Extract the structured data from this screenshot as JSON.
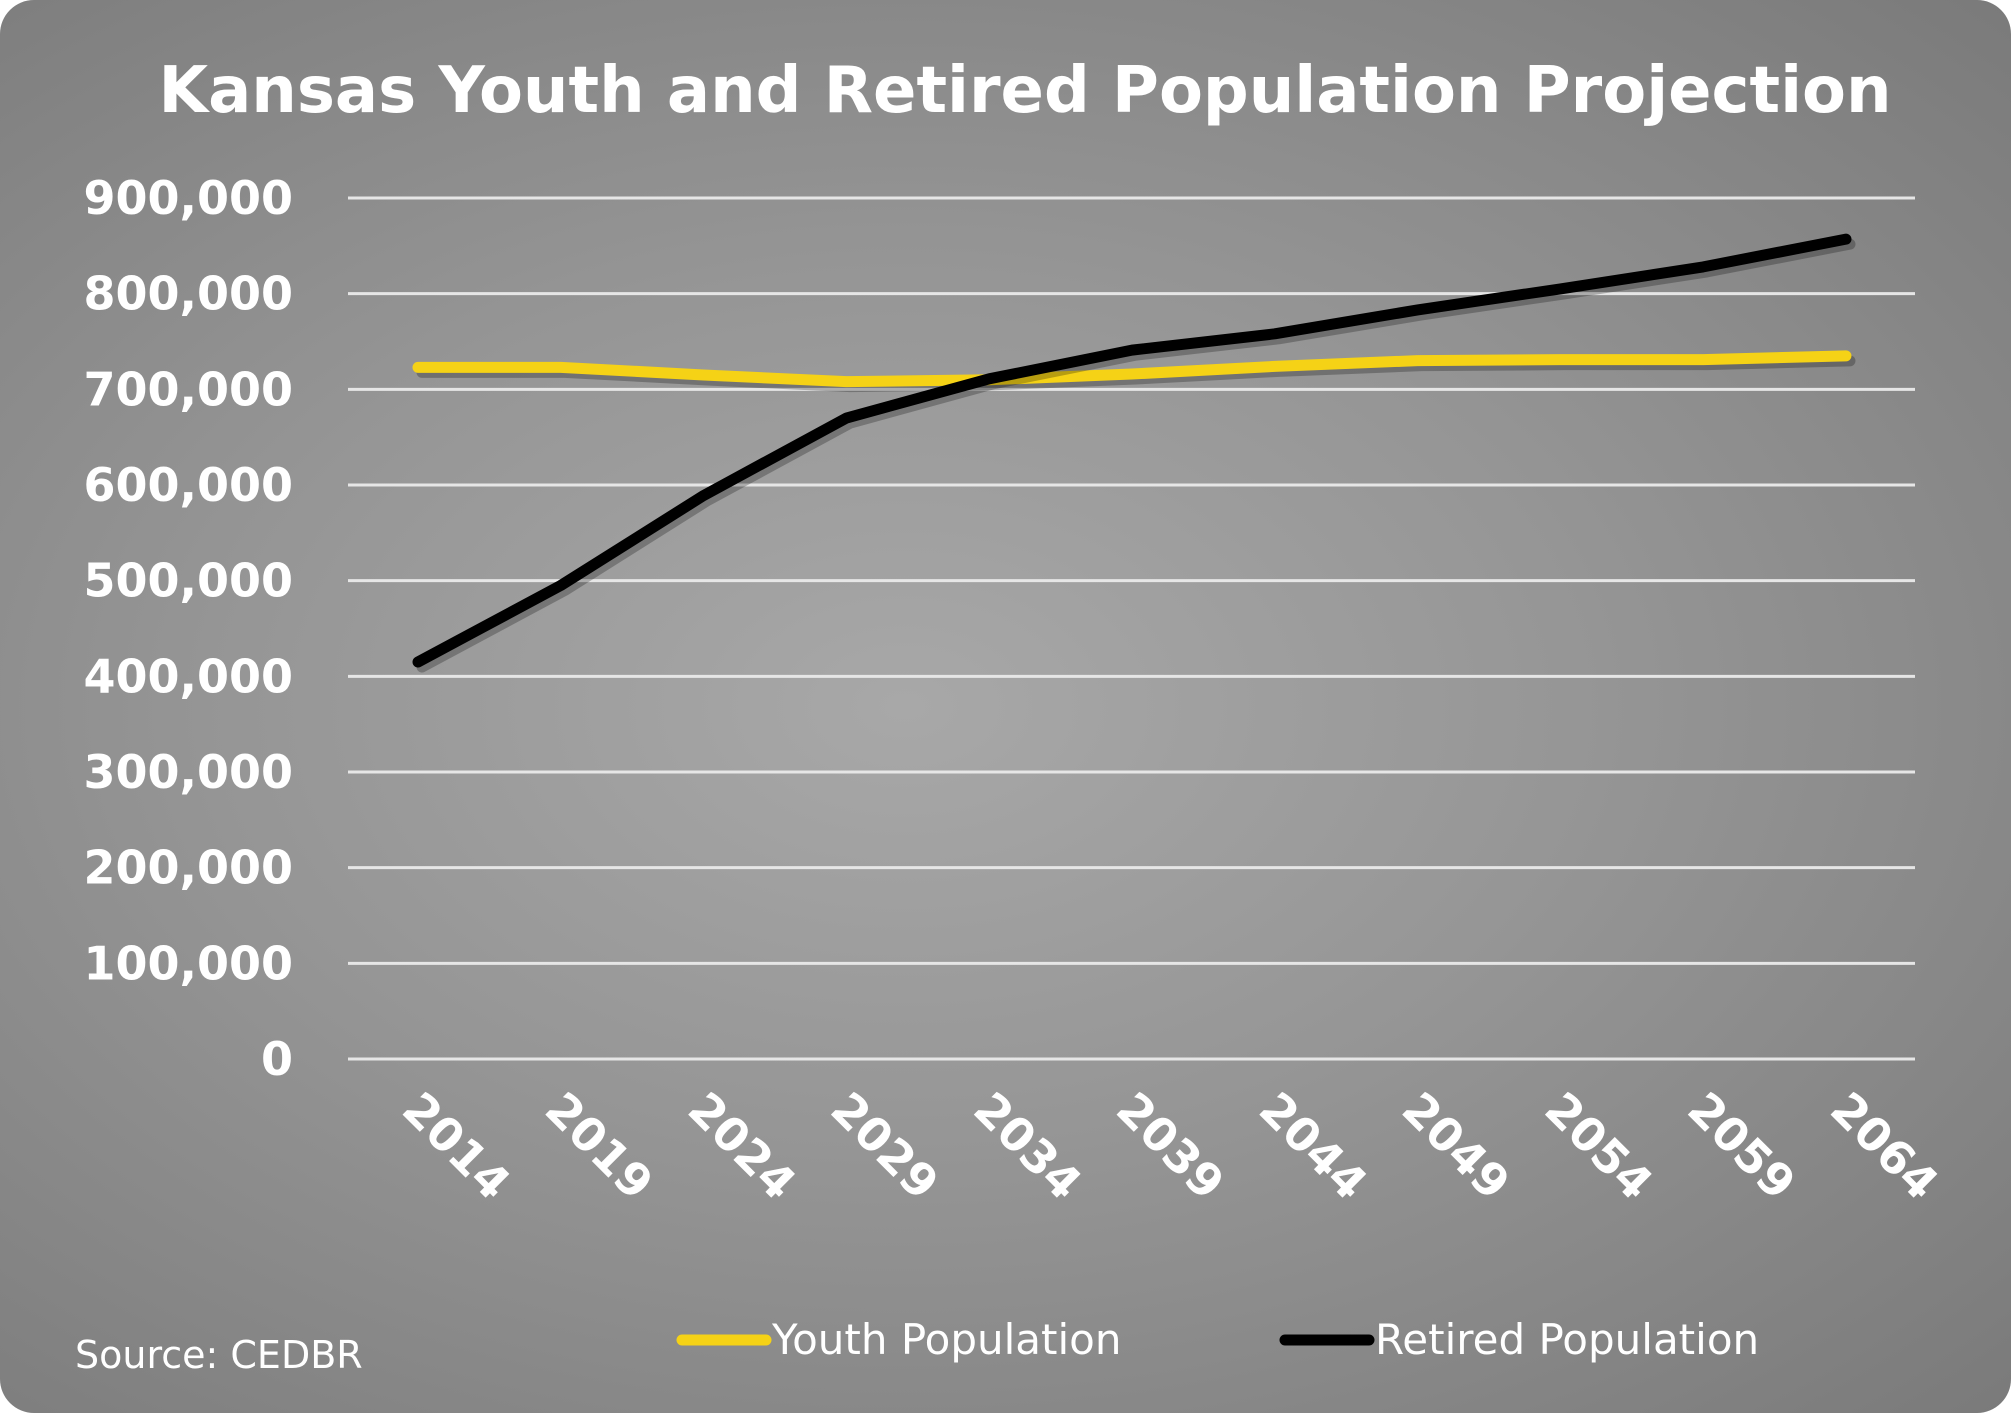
{
  "chart_data": {
    "type": "line",
    "title": "Kansas Youth and Retired Population Projection",
    "xlabel": "",
    "ylabel": "",
    "x": [
      "2014",
      "2019",
      "2024",
      "2029",
      "2034",
      "2039",
      "2044",
      "2049",
      "2054",
      "2059",
      "2064"
    ],
    "ylim": [
      0,
      900000
    ],
    "yticks": [
      0,
      100000,
      200000,
      300000,
      400000,
      500000,
      600000,
      700000,
      800000,
      900000
    ],
    "ytick_labels": [
      "0",
      "100,000",
      "200,000",
      "300,000",
      "400,000",
      "500,000",
      "600,000",
      "700,000",
      "800,000",
      "900,000"
    ],
    "grid": true,
    "legend_placement": "bottom",
    "series": [
      {
        "name": "Youth Population",
        "color": "#f5d216",
        "values": [
          723000,
          723000,
          715000,
          708000,
          710000,
          716000,
          724000,
          730000,
          731000,
          731000,
          735000
        ]
      },
      {
        "name": "Retired Population",
        "color": "#000000",
        "values": [
          415000,
          495000,
          589000,
          670000,
          711000,
          741000,
          758000,
          783000,
          805000,
          828000,
          857000
        ]
      }
    ],
    "source": "Source: CEDBR"
  }
}
